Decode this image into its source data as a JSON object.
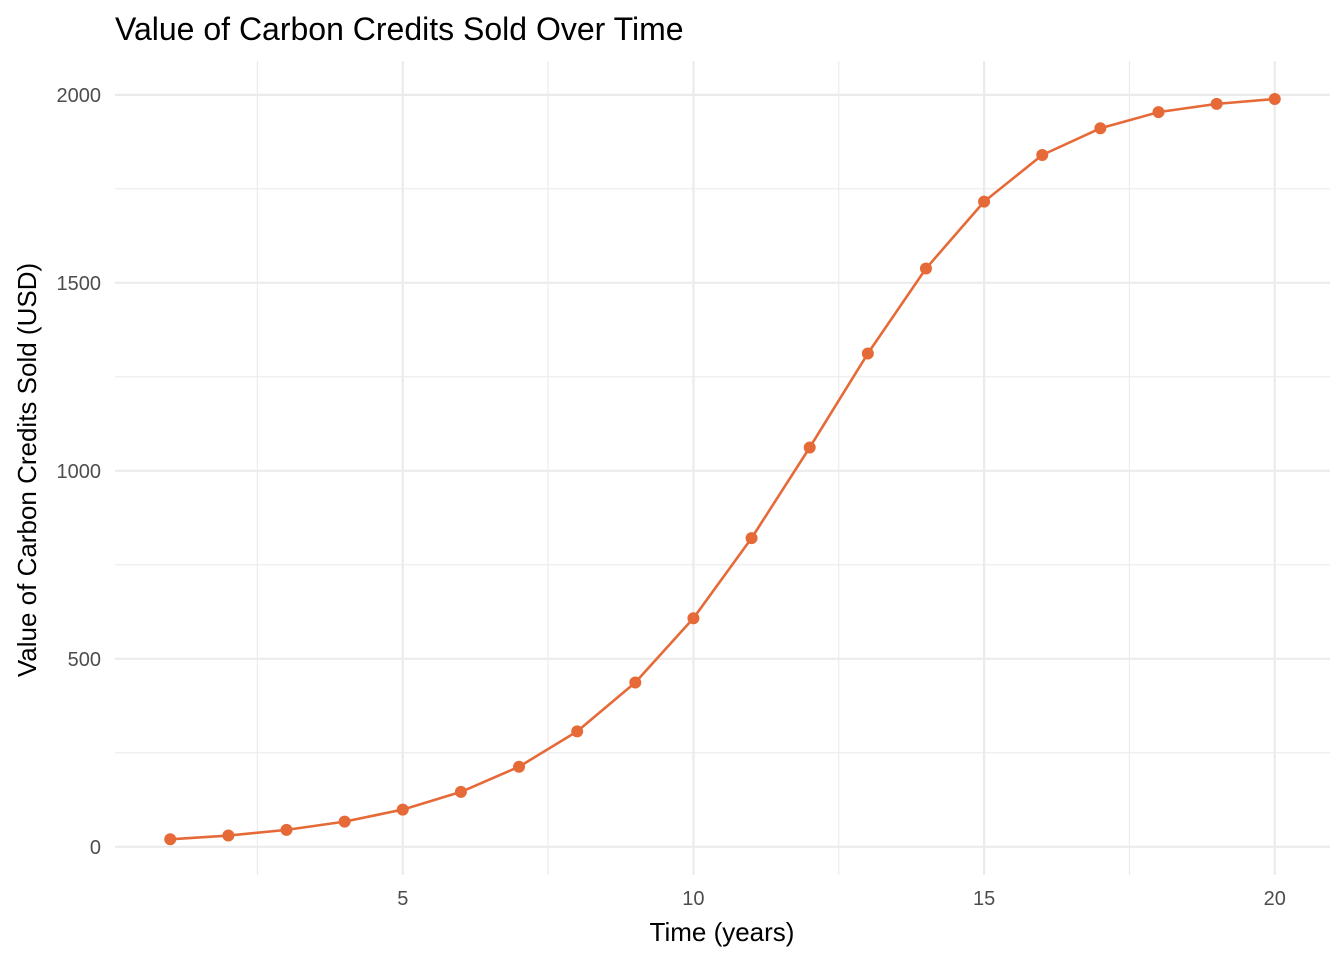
{
  "chart_data": {
    "type": "line",
    "title": "Value of Carbon Credits Sold Over Time",
    "xlabel": "Time (years)",
    "ylabel": "Value of Carbon Credits Sold (USD)",
    "xlim": [
      0.05,
      20.95
    ],
    "ylim": [
      -75,
      2090
    ],
    "x_ticks": [
      5,
      10,
      15,
      20
    ],
    "x_tick_labels": [
      "5",
      "10",
      "15",
      "20"
    ],
    "x_minor_ticks": [
      2.5,
      7.5,
      12.5,
      17.5
    ],
    "y_ticks": [
      0,
      500,
      1000,
      1500,
      2000
    ],
    "y_tick_labels": [
      "0",
      "500",
      "1000",
      "1500",
      "2000"
    ],
    "y_minor_ticks": [
      250,
      750,
      1250,
      1750
    ],
    "grid": true,
    "legend": "none",
    "series": [
      {
        "color": "#e66a38",
        "x": [
          1,
          2,
          3,
          4,
          5,
          6,
          7,
          8,
          9,
          10,
          11,
          12,
          13,
          14,
          15,
          16,
          17,
          18,
          19,
          20
        ],
        "y": [
          20,
          30,
          45,
          67,
          99,
          146,
          213,
          307,
          437,
          608,
          821,
          1062,
          1312,
          1538,
          1716,
          1840,
          1911,
          1954,
          1976,
          1989
        ]
      }
    ]
  }
}
